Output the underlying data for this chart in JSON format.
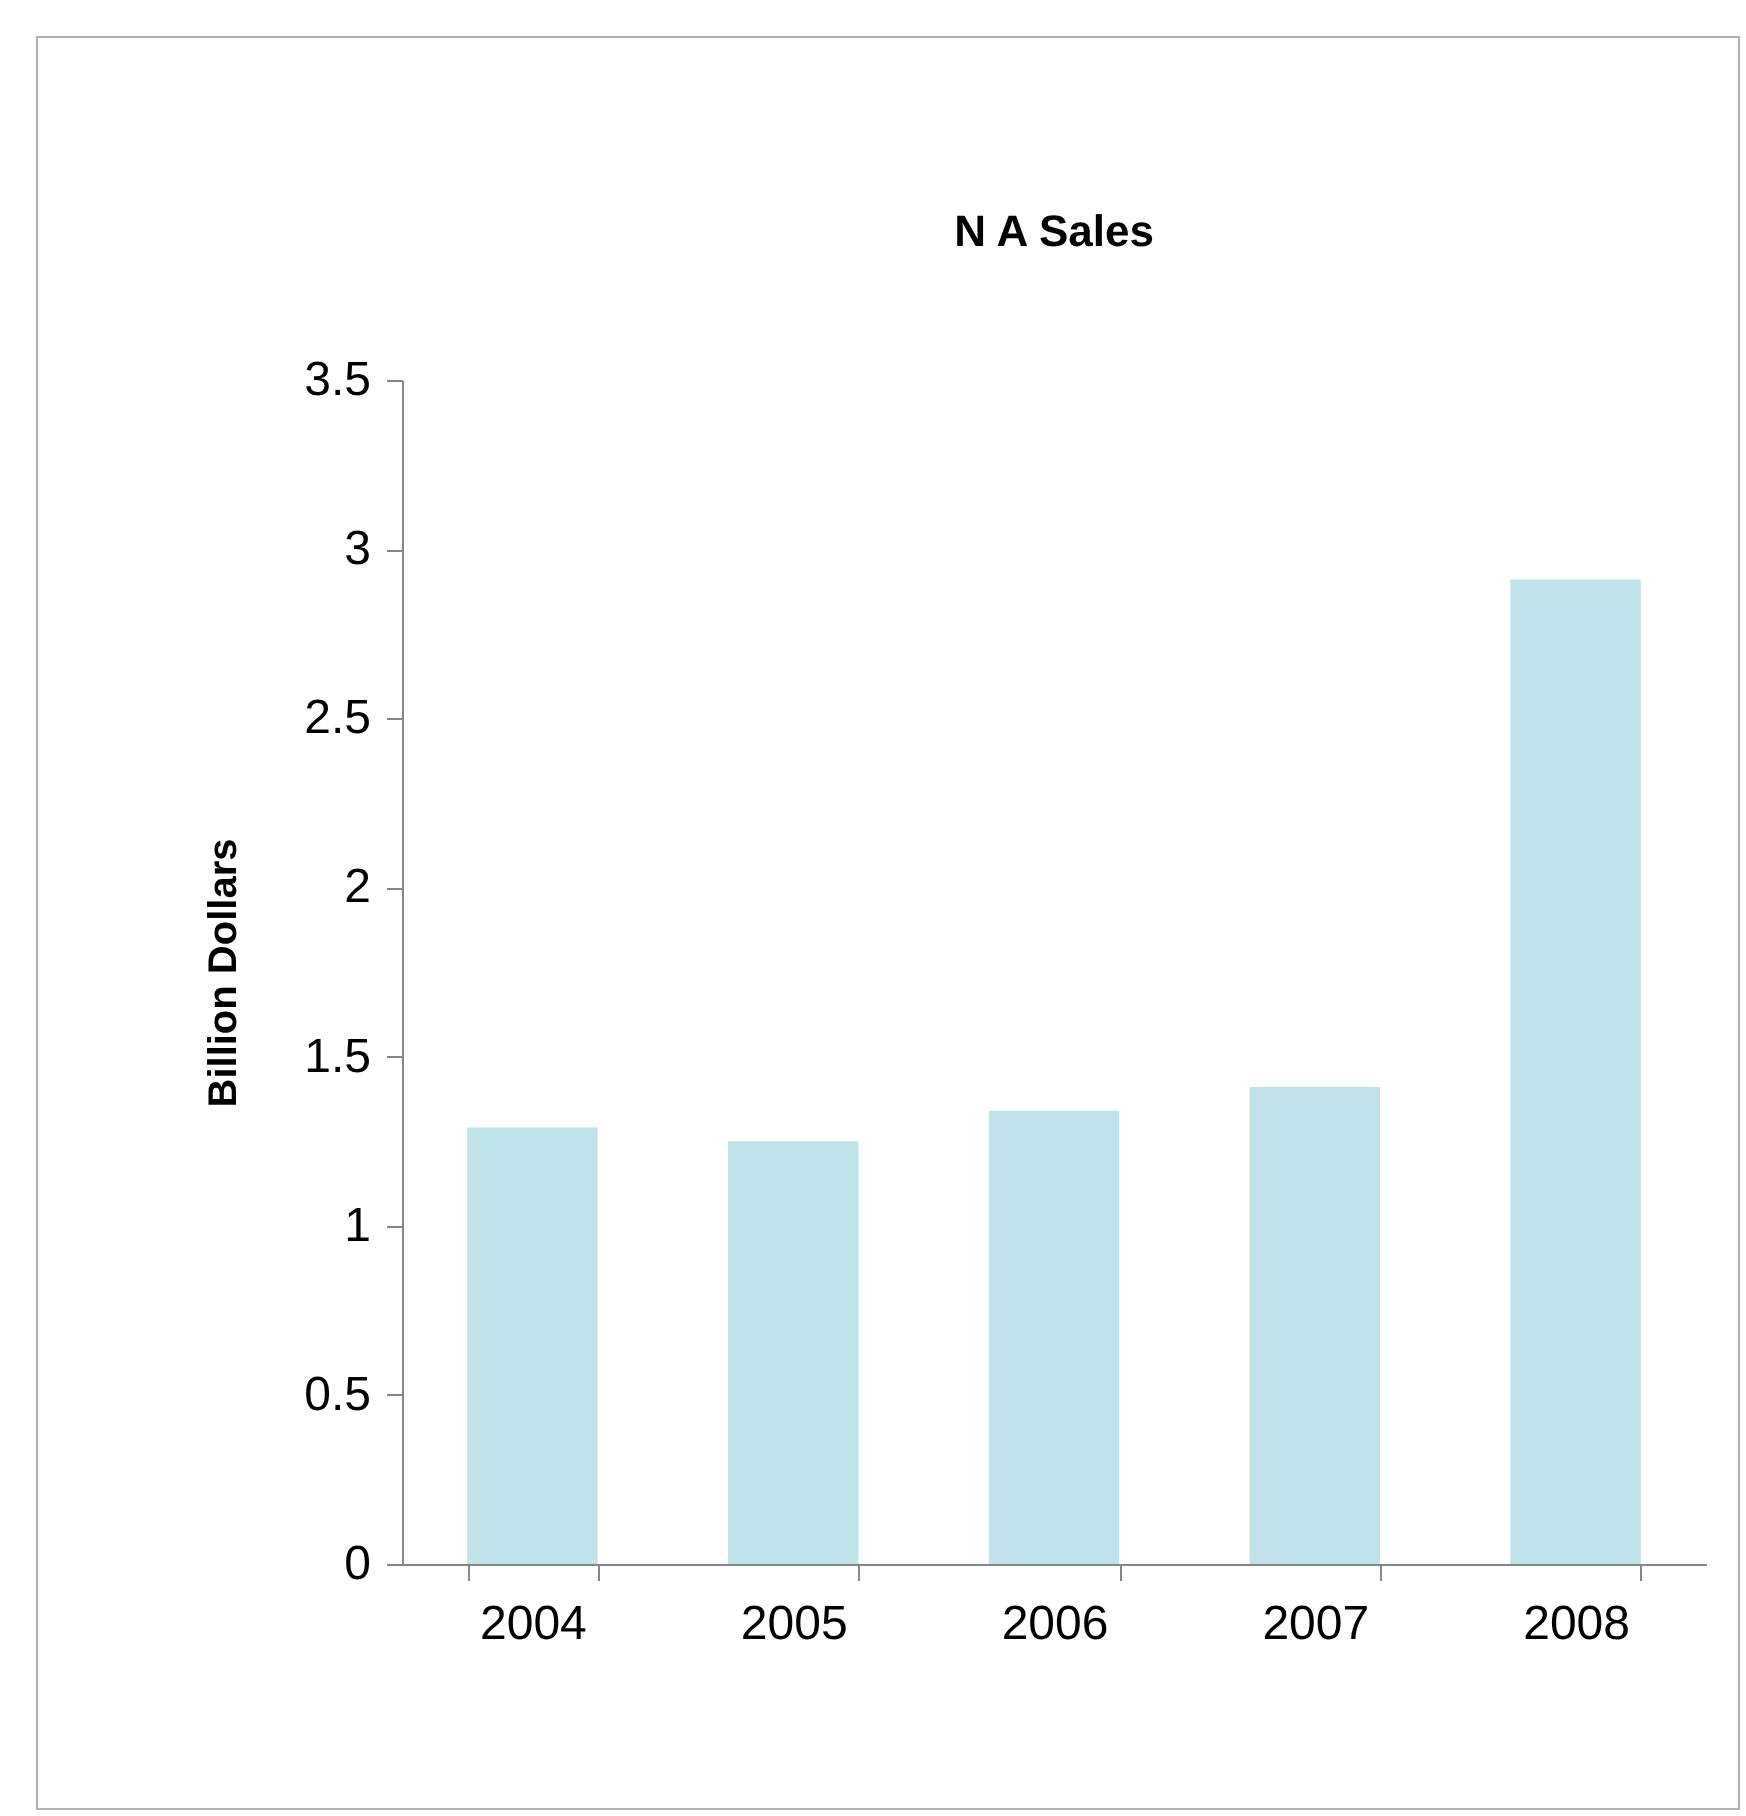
{
  "chart_data": {
    "type": "bar",
    "title": "N A Sales",
    "ylabel": "Billion Dollars",
    "categories": [
      "2004",
      "2005",
      "2006",
      "2007",
      "2008"
    ],
    "values": [
      1.29,
      1.25,
      1.34,
      1.41,
      2.91
    ],
    "color": "#c0e3ea",
    "ylim": [
      0,
      3.5
    ],
    "yticks": [
      0,
      0.5,
      1,
      1.5,
      2,
      2.5,
      3,
      3.5
    ],
    "grid": false
  }
}
